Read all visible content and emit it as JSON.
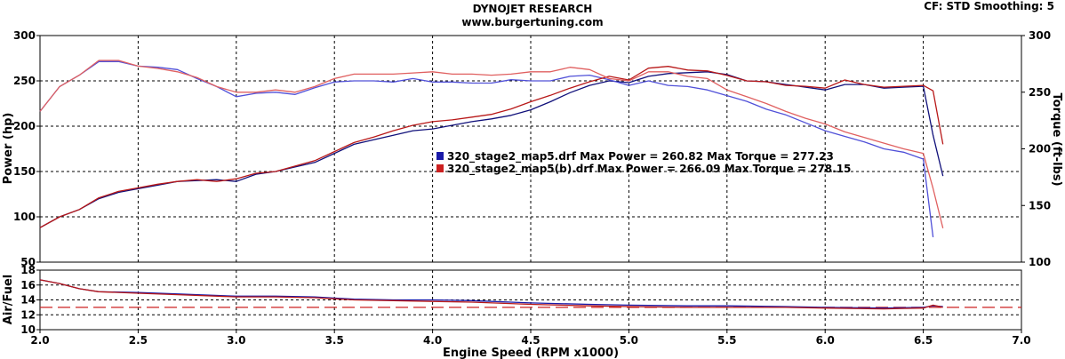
{
  "header": {
    "title": "DYNOJET RESEARCH",
    "subtitle": "www.burgertuning.com",
    "cf_info": "CF: STD  Smoothing: 5"
  },
  "chart_data": [
    {
      "type": "line",
      "panel": "main",
      "xlabel": "Engine Speed (RPM x1000)",
      "ylabel": "Power (hp)",
      "y2label": "Torque (ft-lbs)",
      "xlim": [
        2.0,
        7.0
      ],
      "ylim": [
        50,
        300
      ],
      "y2lim": [
        100,
        300
      ],
      "x_ticks": [
        2.0,
        2.5,
        3.0,
        3.5,
        4.0,
        4.5,
        5.0,
        5.5,
        6.0,
        6.5,
        7.0
      ],
      "x_tick_labels": [
        "2.0",
        "2.5",
        "3.0",
        "3.5",
        "4.0",
        "4.5",
        "5.0",
        "5.5",
        "6.0",
        "6.5",
        "7.0"
      ],
      "y_ticks": [
        50,
        100,
        150,
        200,
        250,
        300
      ],
      "y2_ticks": [
        100,
        150,
        200,
        250,
        300
      ],
      "grid": true,
      "legend": [
        {
          "color": "#1a1aa8",
          "text": "320_stage2_map5.drf Max Power = 260.82     Max Torque = 277.23"
        },
        {
          "color": "#cc2020",
          "text": "320_stage2_map5(b).drf Max Power = 266.09     Max Torque = 278.15"
        }
      ],
      "series": [
        {
          "run": 1,
          "quantity": "power",
          "axis": "left",
          "color": "#10107a",
          "x": [
            2.0,
            2.1,
            2.2,
            2.3,
            2.4,
            2.5,
            2.6,
            2.7,
            2.8,
            2.9,
            3.0,
            3.1,
            3.2,
            3.3,
            3.4,
            3.5,
            3.6,
            3.7,
            3.8,
            3.9,
            4.0,
            4.1,
            4.2,
            4.3,
            4.4,
            4.5,
            4.6,
            4.7,
            4.8,
            4.9,
            5.0,
            5.1,
            5.2,
            5.3,
            5.4,
            5.5,
            5.6,
            5.7,
            5.8,
            5.9,
            6.0,
            6.1,
            6.2,
            6.3,
            6.4,
            6.5,
            6.55,
            6.6
          ],
          "y": [
            88,
            100,
            108,
            120,
            127,
            131,
            135,
            139,
            140,
            141,
            139,
            147,
            150,
            155,
            160,
            170,
            180,
            185,
            190,
            195,
            197,
            201,
            205,
            208,
            212,
            218,
            227,
            237,
            245,
            250,
            248,
            255,
            258,
            259,
            260,
            257,
            250,
            249,
            246,
            243,
            240,
            246,
            246,
            242,
            243,
            244,
            190,
            145
          ]
        },
        {
          "run": 1,
          "quantity": "torque",
          "axis": "right",
          "color": "#5050d8",
          "x": [
            2.0,
            2.1,
            2.2,
            2.3,
            2.4,
            2.5,
            2.6,
            2.7,
            2.8,
            2.9,
            3.0,
            3.1,
            3.2,
            3.3,
            3.4,
            3.5,
            3.6,
            3.7,
            3.8,
            3.9,
            4.0,
            4.1,
            4.2,
            4.3,
            4.4,
            4.5,
            4.6,
            4.7,
            4.8,
            4.9,
            5.0,
            5.1,
            5.2,
            5.3,
            5.4,
            5.5,
            5.6,
            5.7,
            5.8,
            5.9,
            6.0,
            6.1,
            6.2,
            6.3,
            6.4,
            6.5,
            6.55
          ],
          "y": [
            233,
            255,
            265,
            277,
            277,
            273,
            272,
            270,
            262,
            255,
            246,
            249,
            250,
            248,
            254,
            259,
            260,
            260,
            259,
            262,
            259,
            259,
            258,
            258,
            261,
            260,
            260,
            264,
            265,
            261,
            256,
            260,
            256,
            255,
            252,
            247,
            242,
            235,
            230,
            223,
            216,
            211,
            206,
            200,
            197,
            191,
            122
          ]
        },
        {
          "run": 2,
          "quantity": "power",
          "axis": "left",
          "color": "#b81818",
          "x": [
            2.0,
            2.1,
            2.2,
            2.3,
            2.4,
            2.5,
            2.6,
            2.7,
            2.8,
            2.9,
            3.0,
            3.1,
            3.2,
            3.3,
            3.4,
            3.5,
            3.6,
            3.7,
            3.8,
            3.9,
            4.0,
            4.1,
            4.2,
            4.3,
            4.4,
            4.5,
            4.6,
            4.7,
            4.8,
            4.9,
            5.0,
            5.1,
            5.2,
            5.3,
            5.4,
            5.5,
            5.6,
            5.7,
            5.8,
            5.9,
            6.0,
            6.1,
            6.2,
            6.3,
            6.4,
            6.5,
            6.55,
            6.6
          ],
          "y": [
            88,
            100,
            108,
            121,
            128,
            132,
            136,
            139,
            141,
            139,
            142,
            148,
            150,
            156,
            162,
            172,
            182,
            188,
            195,
            201,
            205,
            207,
            210,
            213,
            219,
            227,
            234,
            242,
            249,
            255,
            251,
            264,
            266,
            262,
            261,
            256,
            250,
            249,
            245,
            244,
            242,
            251,
            246,
            243,
            244,
            245,
            239,
            180
          ]
        },
        {
          "run": 2,
          "quantity": "torque",
          "axis": "right",
          "color": "#e06060",
          "x": [
            2.0,
            2.1,
            2.2,
            2.3,
            2.4,
            2.5,
            2.6,
            2.7,
            2.8,
            2.9,
            3.0,
            3.1,
            3.2,
            3.3,
            3.4,
            3.5,
            3.6,
            3.7,
            3.8,
            3.9,
            4.0,
            4.1,
            4.2,
            4.3,
            4.4,
            4.5,
            4.6,
            4.7,
            4.8,
            4.9,
            5.0,
            5.1,
            5.2,
            5.3,
            5.4,
            5.5,
            5.6,
            5.7,
            5.8,
            5.9,
            6.0,
            6.1,
            6.2,
            6.3,
            6.4,
            6.5,
            6.55,
            6.6
          ],
          "y": [
            233,
            255,
            265,
            278,
            278,
            273,
            271,
            268,
            263,
            255,
            250,
            250,
            252,
            250,
            255,
            262,
            266,
            266,
            266,
            267,
            268,
            266,
            266,
            265,
            266,
            268,
            268,
            272,
            270,
            262,
            260,
            268,
            268,
            264,
            262,
            252,
            246,
            240,
            233,
            227,
            222,
            215,
            210,
            205,
            200,
            196,
            165,
            130
          ]
        }
      ]
    },
    {
      "type": "line",
      "panel": "air_fuel",
      "ylabel": "Air/Fuel",
      "xlim": [
        2.0,
        7.0
      ],
      "ylim": [
        10,
        18
      ],
      "y_ticks": [
        10,
        12,
        14,
        16,
        18
      ],
      "grid": true,
      "reference_line": {
        "y": 13.0,
        "color": "#cc2020",
        "style": "dashed"
      },
      "series": [
        {
          "run": 1,
          "color": "#1a1aa8",
          "x": [
            2.0,
            2.1,
            2.2,
            2.3,
            2.5,
            2.7,
            3.0,
            3.2,
            3.4,
            3.6,
            3.8,
            4.0,
            4.2,
            4.5,
            4.8,
            5.0,
            5.3,
            5.5,
            5.8,
            6.0,
            6.3,
            6.5,
            6.55,
            6.6
          ],
          "y": [
            16.7,
            16.2,
            15.5,
            15.1,
            15.0,
            14.8,
            14.5,
            14.5,
            14.4,
            14.1,
            14.0,
            14.0,
            13.9,
            13.6,
            13.4,
            13.3,
            13.2,
            13.2,
            13.1,
            13.0,
            12.9,
            13.0,
            13.2,
            13.1
          ]
        },
        {
          "run": 2,
          "color": "#b81818",
          "x": [
            2.0,
            2.1,
            2.2,
            2.3,
            2.5,
            2.7,
            3.0,
            3.2,
            3.4,
            3.6,
            3.8,
            4.0,
            4.2,
            4.5,
            4.8,
            5.0,
            5.3,
            5.5,
            5.8,
            6.0,
            6.3,
            6.5,
            6.55,
            6.6
          ],
          "y": [
            16.7,
            16.2,
            15.5,
            15.1,
            14.9,
            14.7,
            14.4,
            14.4,
            14.3,
            14.0,
            13.9,
            13.8,
            13.7,
            13.4,
            13.2,
            13.1,
            13.0,
            13.0,
            13.0,
            12.9,
            12.8,
            12.9,
            13.3,
            13.0
          ]
        }
      ]
    }
  ]
}
